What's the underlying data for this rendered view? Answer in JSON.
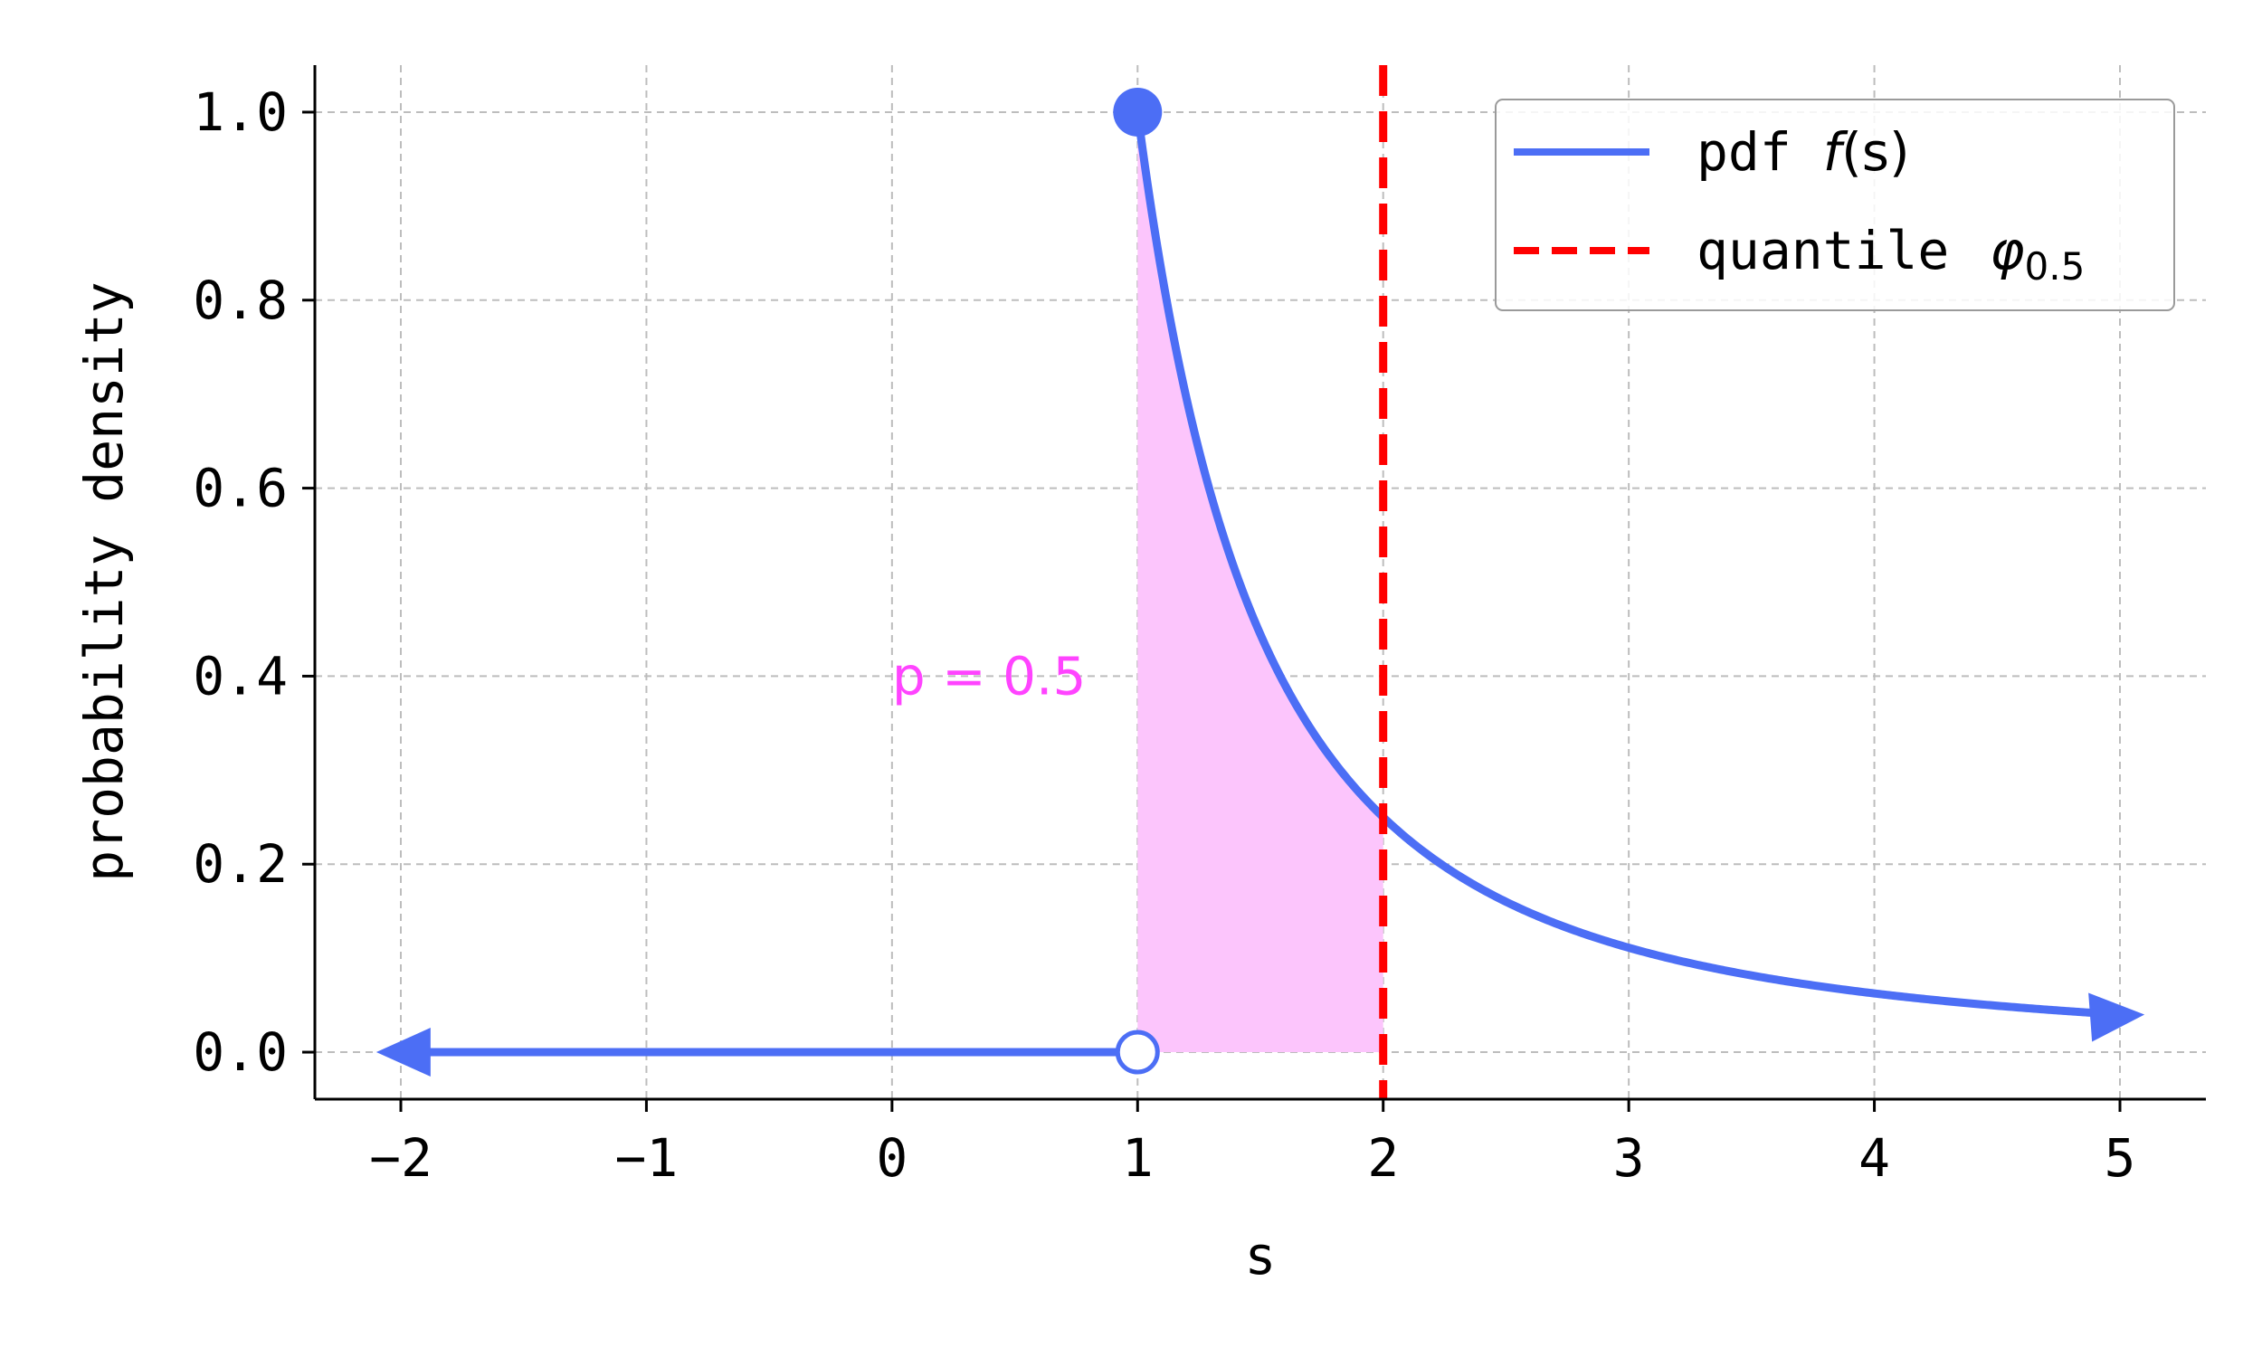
{
  "chart_data": {
    "type": "line",
    "title": "",
    "xlabel": "s",
    "ylabel": "probability density",
    "xlim": [
      -2.35,
      5.35
    ],
    "ylim": [
      -0.05,
      1.05
    ],
    "x_ticks": [
      -2,
      -1,
      0,
      1,
      2,
      3,
      4,
      5
    ],
    "x_tick_labels": [
      "−2",
      "−1",
      "0",
      "1",
      "2",
      "3",
      "4",
      "5"
    ],
    "y_ticks": [
      0.0,
      0.2,
      0.4,
      0.6,
      0.8,
      1.0
    ],
    "y_tick_labels": [
      "0.0",
      "0.2",
      "0.4",
      "0.6",
      "0.8",
      "1.0"
    ],
    "grid": true,
    "legend_position": "top-right",
    "series": [
      {
        "name": "pdf f(s)",
        "color": "#4c6ef5",
        "style": "solid",
        "segments": [
          {
            "x": [
              1.0,
              1.1,
              1.2,
              1.3,
              1.4,
              1.5,
              1.6,
              1.8,
              2.0,
              2.25,
              2.5,
              3.0,
              3.5,
              4.0,
              4.5,
              5.0
            ],
            "y": [
              1.0,
              0.826,
              0.694,
              0.592,
              0.51,
              0.444,
              0.391,
              0.309,
              0.25,
              0.198,
              0.16,
              0.111,
              0.082,
              0.0625,
              0.049,
              0.04
            ]
          },
          {
            "x": [
              -2.0,
              1.0
            ],
            "y": [
              0.0,
              0.0
            ]
          }
        ],
        "markers": [
          {
            "x": 1.0,
            "y": 1.0,
            "type": "filled-circle"
          },
          {
            "x": 1.0,
            "y": 0.0,
            "type": "open-circle"
          }
        ],
        "arrows": [
          {
            "x": -2.0,
            "y": 0.0,
            "direction": "left"
          },
          {
            "x": 5.0,
            "y": 0.04,
            "direction": "right"
          }
        ]
      },
      {
        "name": "quantile φ0.5",
        "color": "#ff0000",
        "style": "dashed",
        "x_value": 2.0
      }
    ],
    "shaded_region": {
      "x_from": 1.0,
      "x_to": 2.0,
      "color": "#fcc5fc"
    },
    "annotations": [
      {
        "text": "p = 0.5",
        "x": 0.0,
        "y": 0.4,
        "color": "#ff44ff"
      }
    ],
    "legend": {
      "entries": [
        {
          "prefix": "pdf ",
          "math": "f",
          "math_tail": "(s)",
          "color": "#4c6ef5",
          "style": "solid"
        },
        {
          "prefix": "quantile ",
          "math": "φ",
          "subscript": "0.5",
          "color": "#ff0000",
          "style": "dashed"
        }
      ]
    }
  }
}
